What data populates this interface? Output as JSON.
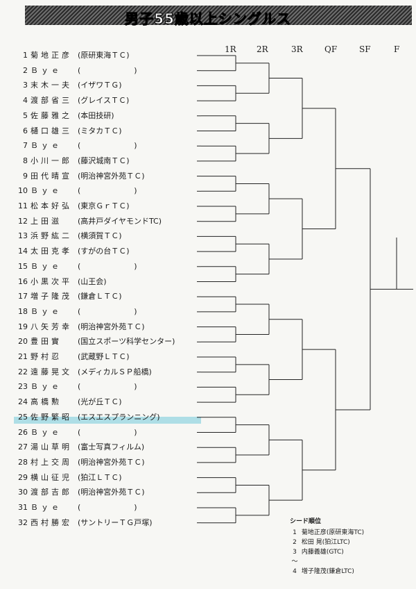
{
  "title": "男子55歳以上シングルス",
  "rounds": [
    "1R",
    "2R",
    "3R",
    "QF",
    "SF",
    "F"
  ],
  "players": [
    {
      "num": "1",
      "name": "菊地正彦",
      "club": "(原研東海ＴＣ)"
    },
    {
      "num": "2",
      "name": "Ｂｙｅ",
      "club": "(　　　　　　　)"
    },
    {
      "num": "3",
      "name": "末木一夫",
      "club": "(イザワＴＧ)"
    },
    {
      "num": "4",
      "name": "渡部省三",
      "club": "(グレイスＴＣ)"
    },
    {
      "num": "5",
      "name": "佐藤雅之",
      "club": "(本田技研)"
    },
    {
      "num": "6",
      "name": "樋口雄三",
      "club": "(ミタカＴＣ)"
    },
    {
      "num": "7",
      "name": "Ｂｙｅ",
      "club": "(　　　　　　　)"
    },
    {
      "num": "8",
      "name": "小川一郎",
      "club": "(藤沢城南ＴＣ)"
    },
    {
      "num": "9",
      "name": "田代晴宣",
      "club": "(明治神宮外苑ＴＣ)"
    },
    {
      "num": "10",
      "name": "Ｂｙｅ",
      "club": "(　　　　　　　)"
    },
    {
      "num": "11",
      "name": "松本好弘",
      "club": "(東京ＧｒＴＣ)"
    },
    {
      "num": "12",
      "name": "上田滋",
      "club": "(高井戸ダイヤモンドTC)"
    },
    {
      "num": "13",
      "name": "浜野紘二",
      "club": "(横須賀ＴＣ)"
    },
    {
      "num": "14",
      "name": "太田克孝",
      "club": "(すがの台ＴＣ)"
    },
    {
      "num": "15",
      "name": "Ｂｙｅ",
      "club": "(　　　　　　　)"
    },
    {
      "num": "16",
      "name": "小黒次平",
      "club": "(山王会)"
    },
    {
      "num": "17",
      "name": "増子隆茂",
      "club": "(鎌倉ＬＴＣ)"
    },
    {
      "num": "18",
      "name": "Ｂｙｅ",
      "club": "(　　　　　　　)"
    },
    {
      "num": "19",
      "name": "八矢芳幸",
      "club": "(明治神宮外苑ＴＣ)"
    },
    {
      "num": "20",
      "name": "豊田實",
      "club": "(国立スポーツ科学センター)"
    },
    {
      "num": "21",
      "name": "野村忍",
      "club": "(武蔵野ＬＴＣ)"
    },
    {
      "num": "22",
      "name": "遠藤晃文",
      "club": "(メディカルＳＰ船橋)"
    },
    {
      "num": "23",
      "name": "Ｂｙｅ",
      "club": "(　　　　　　　)"
    },
    {
      "num": "24",
      "name": "高橋勲",
      "club": "(光が丘ＴＣ)"
    },
    {
      "num": "25",
      "name": "佐野繁昭",
      "club": "(エスエスプランニング)"
    },
    {
      "num": "26",
      "name": "Ｂｙｅ",
      "club": "(　　　　　　　)"
    },
    {
      "num": "27",
      "name": "湯山草明",
      "club": "(富士写真フィルム)"
    },
    {
      "num": "28",
      "name": "村上交周",
      "club": "(明治神宮外苑ＴＣ)"
    },
    {
      "num": "29",
      "name": "横山征児",
      "club": "(狛江ＬＴＣ)"
    },
    {
      "num": "30",
      "name": "渡部吉郎",
      "club": "(明治神宮外苑ＴＣ)"
    },
    {
      "num": "31",
      "name": "Ｂｙｅ",
      "club": "(　　　　　　　)"
    },
    {
      "num": "32",
      "name": "西村勝宏",
      "club": "(サントリーＴＧ戸塚)"
    }
  ],
  "seeds": {
    "heading": "シード順位",
    "rows": [
      {
        "seed": "1",
        "text": "菊地正彦(原研東海TC)"
      },
      {
        "seed": "2",
        "text": "松田 晃(狛江LTC)"
      },
      {
        "seed": "3",
        "text": "内藤義雄(GTC)"
      },
      {
        "seed": "〜",
        "text": ""
      },
      {
        "seed": "4",
        "text": "増子隆茂(鎌倉LTC)"
      }
    ]
  }
}
